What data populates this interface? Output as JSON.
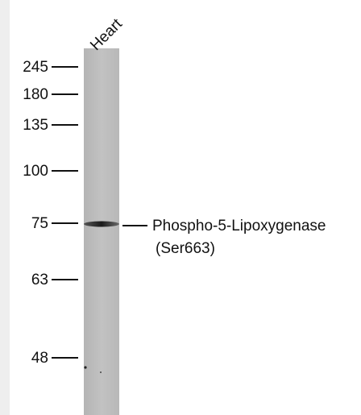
{
  "lanes": [
    "Heart"
  ],
  "markers": [
    "245",
    "180",
    "135",
    "100",
    "75",
    "63",
    "48"
  ],
  "band_label": {
    "line1": "Phospho-5-Lipoxygenase",
    "line2": "(Ser663)"
  }
}
